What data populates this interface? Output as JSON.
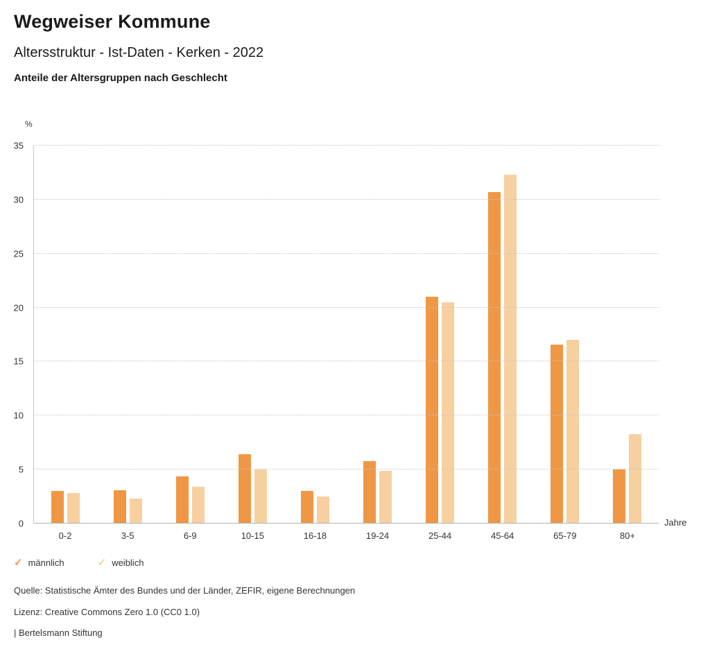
{
  "header": {
    "title": "Wegweiser Kommune",
    "subtitle": "Altersstruktur - Ist-Daten - Kerken - 2022",
    "chart_heading": "Anteile der Altersgruppen nach Geschlecht"
  },
  "chart_data": {
    "type": "bar",
    "title": "Anteile der Altersgruppen nach Geschlecht",
    "categories": [
      "0-2",
      "3-5",
      "6-9",
      "10-15",
      "16-18",
      "19-24",
      "25-44",
      "45-64",
      "65-79",
      "80+"
    ],
    "series": [
      {
        "name": "männlich",
        "color": "#EF9744",
        "values": [
          3.0,
          3.1,
          4.4,
          6.4,
          3.0,
          5.8,
          21.0,
          30.7,
          16.6,
          5.0
        ]
      },
      {
        "name": "weiblich",
        "color": "#F7D0A0",
        "values": [
          2.8,
          2.3,
          3.4,
          5.0,
          2.5,
          4.9,
          20.5,
          32.3,
          17.0,
          8.3
        ]
      }
    ],
    "ylabel": "%",
    "xlabel": "Jahre",
    "ylim": [
      0,
      35
    ],
    "yticks": [
      0,
      5,
      10,
      15,
      20,
      25,
      30,
      35
    ],
    "grid": true,
    "legend_position": "bottom-left",
    "legend_marker": "✓"
  },
  "footer": {
    "source": "Quelle: Statistische Ämter des Bundes und der Länder, ZEFIR, eigene Berechnungen",
    "license": "Lizenz: Creative Commons Zero 1.0 (CC0 1.0)",
    "attribution": "| Bertelsmann Stiftung"
  }
}
